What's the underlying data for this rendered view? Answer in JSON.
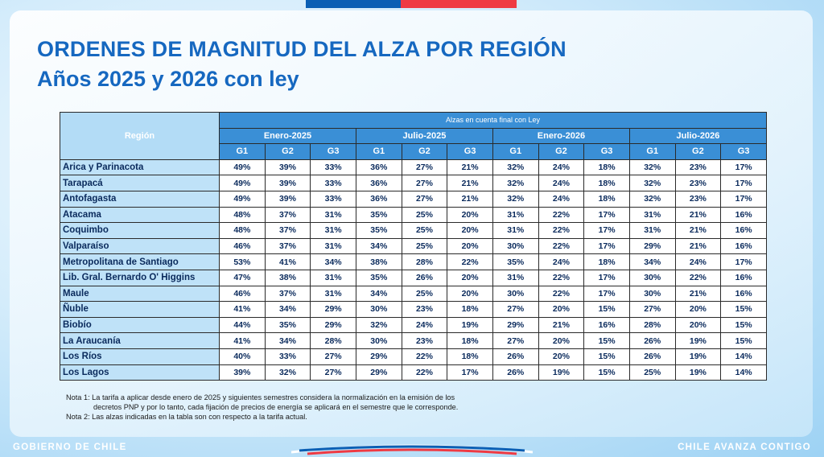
{
  "header": {
    "title": "ORDENES DE MAGNITUD DEL ALZA POR REGIÓN",
    "subtitle": "Años 2025 y 2026 con ley"
  },
  "table": {
    "region_header": "Región",
    "super_header": "Alzas en cuenta final con Ley",
    "periods": [
      "Enero-2025",
      "Julio-2025",
      "Enero-2026",
      "Julio-2026"
    ],
    "groups": [
      "G1",
      "G2",
      "G3"
    ],
    "rows": [
      {
        "region": "Arica y Parinacota",
        "values": [
          "49%",
          "39%",
          "33%",
          "36%",
          "27%",
          "21%",
          "32%",
          "24%",
          "18%",
          "32%",
          "23%",
          "17%"
        ]
      },
      {
        "region": "Tarapacá",
        "values": [
          "49%",
          "39%",
          "33%",
          "36%",
          "27%",
          "21%",
          "32%",
          "24%",
          "18%",
          "32%",
          "23%",
          "17%"
        ]
      },
      {
        "region": "Antofagasta",
        "values": [
          "49%",
          "39%",
          "33%",
          "36%",
          "27%",
          "21%",
          "32%",
          "24%",
          "18%",
          "32%",
          "23%",
          "17%"
        ]
      },
      {
        "region": "Atacama",
        "values": [
          "48%",
          "37%",
          "31%",
          "35%",
          "25%",
          "20%",
          "31%",
          "22%",
          "17%",
          "31%",
          "21%",
          "16%"
        ]
      },
      {
        "region": "Coquimbo",
        "values": [
          "48%",
          "37%",
          "31%",
          "35%",
          "25%",
          "20%",
          "31%",
          "22%",
          "17%",
          "31%",
          "21%",
          "16%"
        ]
      },
      {
        "region": "Valparaíso",
        "values": [
          "46%",
          "37%",
          "31%",
          "34%",
          "25%",
          "20%",
          "30%",
          "22%",
          "17%",
          "29%",
          "21%",
          "16%"
        ]
      },
      {
        "region": "Metropolitana de Santiago",
        "values": [
          "53%",
          "41%",
          "34%",
          "38%",
          "28%",
          "22%",
          "35%",
          "24%",
          "18%",
          "34%",
          "24%",
          "17%"
        ]
      },
      {
        "region": "Lib. Gral. Bernardo O' Higgins",
        "values": [
          "47%",
          "38%",
          "31%",
          "35%",
          "26%",
          "20%",
          "31%",
          "22%",
          "17%",
          "30%",
          "22%",
          "16%"
        ]
      },
      {
        "region": "Maule",
        "values": [
          "46%",
          "37%",
          "31%",
          "34%",
          "25%",
          "20%",
          "30%",
          "22%",
          "17%",
          "30%",
          "21%",
          "16%"
        ]
      },
      {
        "region": "Ñuble",
        "values": [
          "41%",
          "34%",
          "29%",
          "30%",
          "23%",
          "18%",
          "27%",
          "20%",
          "15%",
          "27%",
          "20%",
          "15%"
        ]
      },
      {
        "region": "Biobío",
        "values": [
          "44%",
          "35%",
          "29%",
          "32%",
          "24%",
          "19%",
          "29%",
          "21%",
          "16%",
          "28%",
          "20%",
          "15%"
        ]
      },
      {
        "region": "La Araucanía",
        "values": [
          "41%",
          "34%",
          "28%",
          "30%",
          "23%",
          "18%",
          "27%",
          "20%",
          "15%",
          "26%",
          "19%",
          "15%"
        ]
      },
      {
        "region": "Los Ríos",
        "values": [
          "40%",
          "33%",
          "27%",
          "29%",
          "22%",
          "18%",
          "26%",
          "20%",
          "15%",
          "26%",
          "19%",
          "14%"
        ]
      },
      {
        "region": "Los Lagos",
        "values": [
          "39%",
          "32%",
          "27%",
          "29%",
          "22%",
          "17%",
          "26%",
          "19%",
          "15%",
          "25%",
          "19%",
          "14%"
        ]
      }
    ]
  },
  "notes": {
    "note1_line1": "Nota 1: La tarifa a aplicar desde enero de 2025 y siguientes semestres considera la normalización en la emisión de los",
    "note1_line2": "decretos PNP y por lo tanto, cada fijación de precios de energía se aplicará en el semestre que le corresponde.",
    "note2": "Nota 2: Las alzas indicadas en la tabla son con respecto a la tarifa actual."
  },
  "footer": {
    "left": "GOBIERNO DE CHILE",
    "right": "CHILE AVANZA CONTIGO"
  },
  "colors": {
    "title": "#1668c0",
    "header_blue": "#3a8fd6",
    "region_cell": "#bfe2f8",
    "flag_blue": "#0b5fb4",
    "flag_red": "#ef3a43"
  }
}
